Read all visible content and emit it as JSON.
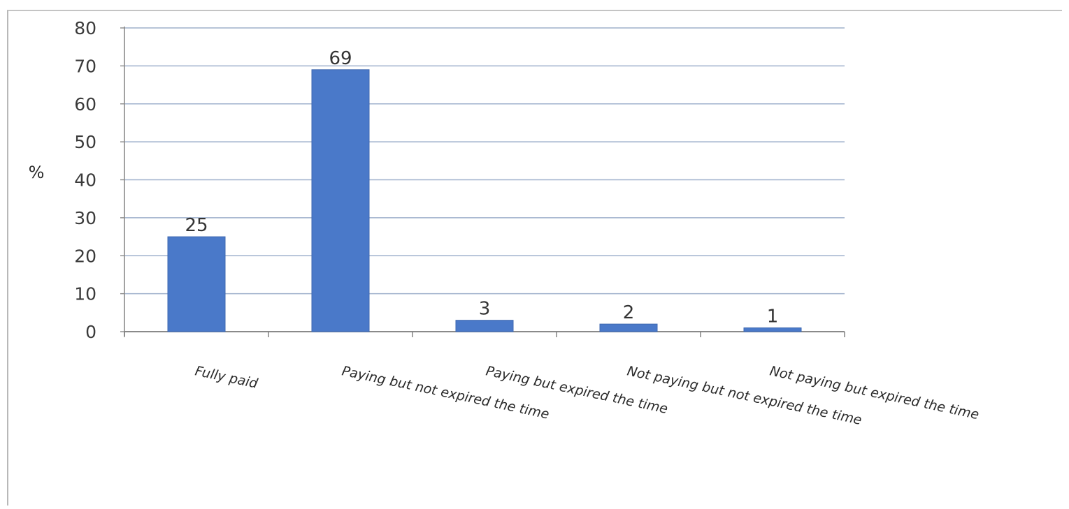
{
  "chart_data": {
    "type": "bar",
    "ylabel": "%",
    "ylim": [
      0,
      80
    ],
    "yticks": [
      0,
      10,
      20,
      30,
      40,
      50,
      60,
      70,
      80
    ],
    "grid": true,
    "categories": [
      "Fully paid",
      "Paying but not expired the time",
      "Paying but expired the time",
      "Not paying but not expired the time",
      "Not paying but expired the time"
    ],
    "values": [
      25,
      69,
      3,
      2,
      1
    ],
    "data_labels": [
      "25",
      "69",
      "3",
      "2",
      "1"
    ],
    "bar_color": "#4a79c9"
  }
}
